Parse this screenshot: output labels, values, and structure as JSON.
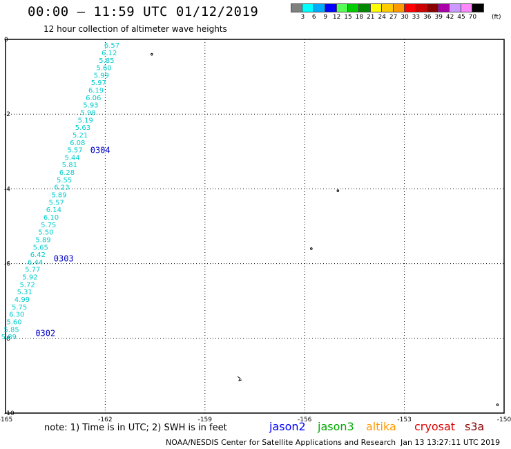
{
  "header": {
    "title": "00:00 – 11:59 UTC 01/12/2019",
    "subtitle": "12 hour collection of altimeter wave heights"
  },
  "legend": {
    "ticks": [
      "3",
      "6",
      "9",
      "12",
      "15",
      "18",
      "21",
      "24",
      "27",
      "30",
      "33",
      "36",
      "39",
      "42",
      "45",
      "70"
    ],
    "unit": "(ft)",
    "colors": [
      "#808080",
      "#00ffff",
      "#00aaff",
      "#0000ff",
      "#55ff55",
      "#00cc00",
      "#008800",
      "#ffff00",
      "#ffcc00",
      "#ff9900",
      "#ff0000",
      "#cc0000",
      "#880000",
      "#aa00aa",
      "#cc99ff",
      "#ff88ff",
      "#000000"
    ]
  },
  "chart_data": {
    "type": "scatter",
    "xlim": [
      -165,
      -150
    ],
    "ylim": [
      -10,
      0
    ],
    "x_ticks": [
      "-165",
      "-162",
      "-159",
      "-156",
      "-153",
      "-150"
    ],
    "y_ticks": [
      "0",
      "-2",
      "-4",
      "-6",
      "-8",
      "-10"
    ],
    "grid": true,
    "track": {
      "series": "jason2",
      "color_label": "#00cccc",
      "values": [
        "6.57",
        "6.12",
        "5.85",
        "5.60",
        "5.99",
        "5.97",
        "6.19",
        "6.06",
        "5.93",
        "5.98",
        "5.19",
        "5.63",
        "5.21",
        "6.08",
        "5.57",
        "5.44",
        "5.81",
        "6.28",
        "5.55",
        "6.23",
        "5.89",
        "5.57",
        "6.14",
        "6.10",
        "5.75",
        "5.50",
        "5.89",
        "5.65",
        "6.42",
        "6.44",
        "5.77",
        "5.92",
        "5.72",
        "5.31",
        "4.99",
        "5.75",
        "6.30",
        "5.60",
        "5.85",
        "5.89"
      ],
      "start": {
        "lon": -161.8,
        "lat": -0.15
      },
      "end": {
        "lon": -164.9,
        "lat": -7.95
      }
    },
    "time_labels": [
      {
        "text": "0304",
        "lon": -162.45,
        "lat": -2.95
      },
      {
        "text": "0303",
        "lon": -163.55,
        "lat": -5.85
      },
      {
        "text": "0302",
        "lon": -164.1,
        "lat": -7.85
      }
    ],
    "time_label_color": "#0000cc"
  },
  "footer": {
    "note": "note: 1) Time is in UTC; 2) SWH is in feet",
    "satellites": [
      {
        "name": "jason2",
        "color": "#0000ff"
      },
      {
        "name": "jason3",
        "color": "#00aa00"
      },
      {
        "name": "altika",
        "color": "#ff9900"
      },
      {
        "name": "cryosat",
        "color": "#dd0000"
      },
      {
        "name": "s3a",
        "color": "#880000"
      }
    ],
    "credit": "NOAA/NESDIS Center for Satellite Applications and Research",
    "timestamp": "Jan 13 13:27:11 UTC 2019"
  }
}
